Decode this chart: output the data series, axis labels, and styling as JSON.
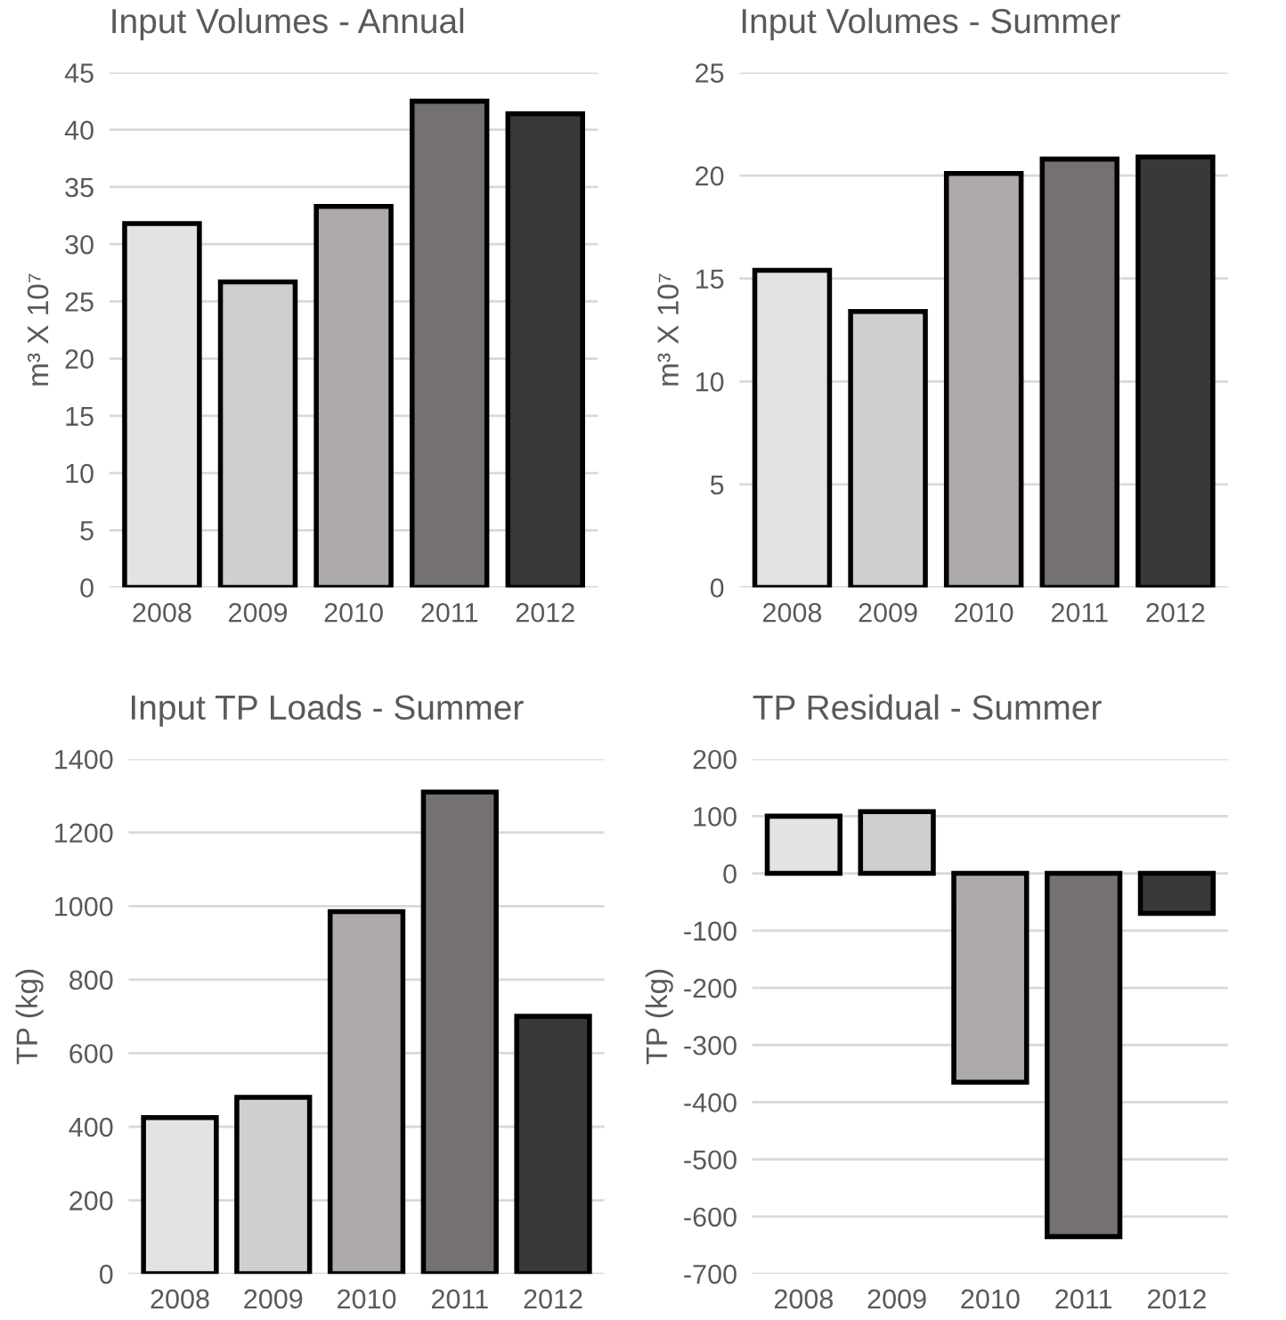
{
  "chart_data": [
    {
      "type": "bar",
      "title": "Input Volumes - Annual",
      "ylabel": "m³ X 10⁷",
      "categories": [
        "2008",
        "2009",
        "2010",
        "2011",
        "2012"
      ],
      "values": [
        31.8,
        26.7,
        33.3,
        42.5,
        41.4
      ],
      "colors": [
        "#e3e3e3",
        "#d0cecf",
        "#aeaaa9",
        "#757170",
        "#3b3938"
      ],
      "ylim": [
        0,
        45
      ],
      "yticks": [
        0,
        5,
        10,
        15,
        20,
        25,
        30,
        35,
        40,
        45
      ],
      "grid": "y"
    },
    {
      "type": "bar",
      "title": "Input Volumes - Summer",
      "ylabel": "m³ X 10⁷",
      "categories": [
        "2008",
        "2009",
        "2010",
        "2011",
        "2012"
      ],
      "values": [
        15.4,
        13.4,
        20.1,
        20.8,
        20.9
      ],
      "colors": [
        "#e3e3e3",
        "#d0cecf",
        "#aeaaa9",
        "#757170",
        "#3b3938"
      ],
      "ylim": [
        0,
        25
      ],
      "yticks": [
        0,
        5,
        10,
        15,
        20,
        25
      ],
      "grid": "y"
    },
    {
      "type": "bar",
      "title": "Input TP Loads - Summer",
      "ylabel": "TP (kg)",
      "categories": [
        "2008",
        "2009",
        "2010",
        "2011",
        "2012"
      ],
      "values": [
        425,
        480,
        985,
        1310,
        700
      ],
      "colors": [
        "#e3e3e3",
        "#d0cecf",
        "#aeaaa9",
        "#757170",
        "#3b3938"
      ],
      "ylim": [
        0,
        1400
      ],
      "yticks": [
        0,
        200,
        400,
        600,
        800,
        1000,
        1200,
        1400
      ],
      "grid": "y"
    },
    {
      "type": "bar",
      "title": "TP Residual - Summer",
      "ylabel": "TP (kg)",
      "categories": [
        "2008",
        "2009",
        "2010",
        "2011",
        "2012"
      ],
      "values": [
        100,
        108,
        -365,
        -635,
        -70
      ],
      "colors": [
        "#e3e3e3",
        "#d0cecf",
        "#aeaaa9",
        "#757170",
        "#3b3938"
      ],
      "ylim": [
        -700,
        200
      ],
      "yticks": [
        {
          "value": -700,
          "label": "-700"
        },
        {
          "value": -600,
          "label": "-600"
        },
        {
          "value": -500,
          "label": "-500"
        },
        {
          "value": -400,
          "label": "-400"
        },
        {
          "value": -300,
          "label": "-300"
        },
        {
          "value": -200,
          "label": "-200"
        },
        {
          "value": -100,
          "label": "-100"
        },
        0,
        100,
        200
      ],
      "grid": "y"
    }
  ]
}
